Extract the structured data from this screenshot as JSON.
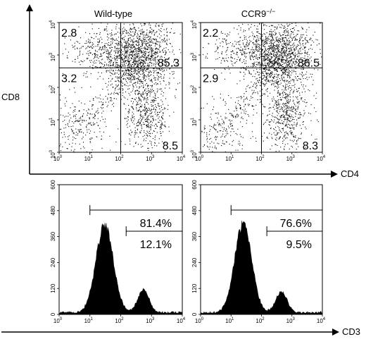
{
  "axes": {
    "x_top_label": "CD4",
    "y_top_label": "CD8",
    "x_bottom_label": "CD3"
  },
  "chart_data": [
    {
      "type": "scatter",
      "title": "Wild-type",
      "xlabel": "CD4",
      "ylabel": "CD8",
      "log_scale": true,
      "xlim": [
        1,
        10000
      ],
      "ylim": [
        1,
        10000
      ],
      "x_ticks": [
        "10",
        "10",
        "10",
        "10",
        "10"
      ],
      "x_tick_exp": [
        "0",
        "1",
        "2",
        "3",
        "4"
      ],
      "y_ticks": [
        "10",
        "10",
        "10",
        "10",
        "10"
      ],
      "y_tick_exp": [
        "0",
        "1",
        "2",
        "3",
        "4"
      ],
      "quadrant_gates": {
        "x": 100,
        "y": 400
      },
      "quadrants": [
        {
          "position": "upper-left",
          "value": "2.8"
        },
        {
          "position": "upper-right",
          "value": "85.3"
        },
        {
          "position": "lower-left",
          "value": "3.2"
        },
        {
          "position": "lower-right",
          "value": "8.5"
        }
      ],
      "populations": [
        {
          "name": "double-positive",
          "cx": 320,
          "cy": 1000,
          "sx": 2.6,
          "sy": 2.4,
          "n": 1400
        },
        {
          "name": "cd4-single",
          "cx": 700,
          "cy": 15,
          "sx": 1.6,
          "sy": 2.6,
          "n": 520
        },
        {
          "name": "cd8-single",
          "cx": 15,
          "cy": 1400,
          "sx": 2.4,
          "sy": 1.6,
          "n": 220
        },
        {
          "name": "double-negative",
          "cx": 4,
          "cy": 6,
          "sx": 2.4,
          "sy": 2.4,
          "n": 200
        },
        {
          "name": "diagonal",
          "cx": 70,
          "cy": 90,
          "sx": 2.8,
          "sy": 2.8,
          "n": 240
        }
      ]
    },
    {
      "type": "scatter",
      "title": "CCR9",
      "title_sup": "−/−",
      "xlabel": "CD4",
      "ylabel": "CD8",
      "log_scale": true,
      "xlim": [
        1,
        10000
      ],
      "ylim": [
        1,
        10000
      ],
      "x_ticks": [
        "10",
        "10",
        "10",
        "10",
        "10"
      ],
      "x_tick_exp": [
        "0",
        "1",
        "2",
        "3",
        "4"
      ],
      "y_ticks": [
        "10",
        "10",
        "10",
        "10",
        "10"
      ],
      "y_tick_exp": [
        "0",
        "1",
        "2",
        "3",
        "4"
      ],
      "quadrant_gates": {
        "x": 100,
        "y": 400
      },
      "quadrants": [
        {
          "position": "upper-left",
          "value": "2.2"
        },
        {
          "position": "upper-right",
          "value": "86.5"
        },
        {
          "position": "lower-left",
          "value": "2.9"
        },
        {
          "position": "lower-right",
          "value": "8.3"
        }
      ],
      "populations": [
        {
          "name": "double-positive",
          "cx": 320,
          "cy": 1000,
          "sx": 2.6,
          "sy": 2.4,
          "n": 1400
        },
        {
          "name": "cd4-single",
          "cx": 700,
          "cy": 15,
          "sx": 1.6,
          "sy": 2.6,
          "n": 520
        },
        {
          "name": "cd8-single",
          "cx": 15,
          "cy": 1400,
          "sx": 2.4,
          "sy": 1.6,
          "n": 200
        },
        {
          "name": "double-negative",
          "cx": 4,
          "cy": 6,
          "sx": 2.4,
          "sy": 2.4,
          "n": 190
        },
        {
          "name": "diagonal",
          "cx": 70,
          "cy": 90,
          "sx": 2.8,
          "sy": 2.8,
          "n": 240
        }
      ]
    },
    {
      "type": "area",
      "title": "",
      "xlabel": "CD3",
      "log_scale": true,
      "xlim": [
        1,
        10000
      ],
      "ylim": [
        0,
        600
      ],
      "x_ticks": [
        "10",
        "10",
        "10",
        "10",
        "10"
      ],
      "x_tick_exp": [
        "0",
        "1",
        "2",
        "3",
        "4"
      ],
      "y_ticks": [
        "0",
        "120",
        "240",
        "360",
        "480",
        "600"
      ],
      "peaks": [
        {
          "center": 30,
          "width": 0.28,
          "height": 415
        },
        {
          "center": 550,
          "width": 0.18,
          "height": 110
        }
      ],
      "gates": [
        {
          "from": 10,
          "to": 10000,
          "value": "81.4%"
        },
        {
          "from": 150,
          "to": 10000,
          "value": "12.1%"
        }
      ]
    },
    {
      "type": "area",
      "title": "",
      "xlabel": "CD3",
      "log_scale": true,
      "xlim": [
        1,
        10000
      ],
      "ylim": [
        0,
        600
      ],
      "x_ticks": [
        "10",
        "10",
        "10",
        "10",
        "10"
      ],
      "x_tick_exp": [
        "0",
        "1",
        "2",
        "3",
        "4"
      ],
      "y_ticks": [
        "0",
        "120",
        "240",
        "360",
        "480",
        "600"
      ],
      "peaks": [
        {
          "center": 25,
          "width": 0.28,
          "height": 420
        },
        {
          "center": 450,
          "width": 0.18,
          "height": 100
        }
      ],
      "gates": [
        {
          "from": 10,
          "to": 10000,
          "value": "76.6%"
        },
        {
          "from": 150,
          "to": 10000,
          "value": "9.5%"
        }
      ]
    }
  ]
}
